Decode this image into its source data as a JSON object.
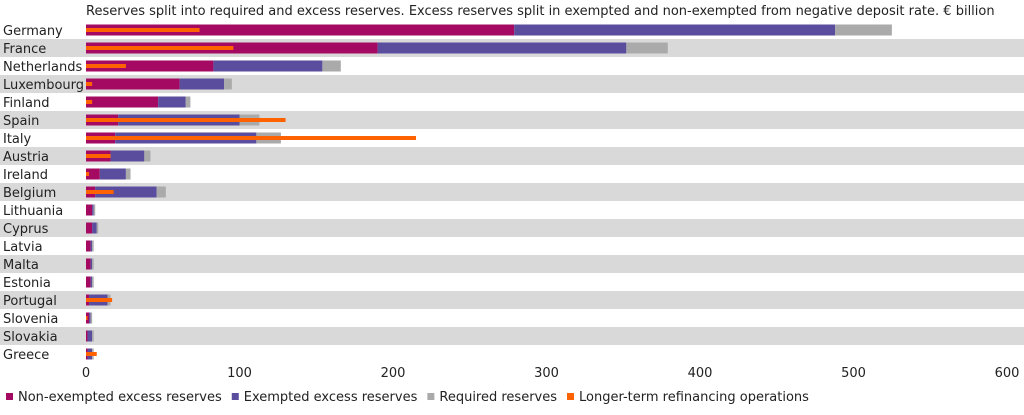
{
  "chart_data": {
    "type": "bar",
    "orientation": "horizontal",
    "stacked": true,
    "title": "Reserves split into required and excess reserves. Excess reserves split in exempted and non-exempted from negative deposit rate. € billion",
    "xlim": [
      0,
      600
    ],
    "xticks": [
      "0",
      "100",
      "200",
      "300",
      "400",
      "500",
      "600"
    ],
    "categories": [
      "Germany",
      "France",
      "Netherlands",
      "Luxembourg",
      "Finland",
      "Spain",
      "Italy",
      "Austria",
      "Ireland",
      "Belgium",
      "Lithuania",
      "Cyprus",
      "Latvia",
      "Malta",
      "Estonia",
      "Portugal",
      "Slovenia",
      "Slovakia",
      "Greece"
    ],
    "series": [
      {
        "name": "Non-exempted excess reserves",
        "color": "#a50a62",
        "values": [
          279,
          190,
          83,
          61,
          47,
          21,
          19,
          16,
          9,
          6,
          4,
          4,
          3,
          3,
          3,
          2,
          2,
          1,
          1
        ]
      },
      {
        "name": "Exempted excess reserves",
        "color": "#5a4d9e",
        "values": [
          209,
          162,
          71,
          29,
          18,
          79,
          92,
          22,
          17,
          40,
          1,
          3,
          1,
          1,
          1,
          12,
          1,
          3,
          3
        ]
      },
      {
        "name": "Required reserves",
        "color": "#aaaaaa",
        "values": [
          37,
          27,
          12,
          5,
          3,
          13,
          16,
          4,
          3,
          6,
          1,
          1,
          1,
          1,
          1,
          2,
          1,
          1,
          1
        ]
      }
    ],
    "overlay": {
      "name": "Longer-term refinancing operations",
      "color": "#ff6200",
      "values": [
        74,
        96,
        26,
        4,
        4,
        130,
        215,
        16,
        2,
        18,
        0,
        0,
        0,
        0,
        0,
        17,
        1,
        0,
        7
      ]
    },
    "legend_position": "bottom",
    "row_banding": true
  }
}
